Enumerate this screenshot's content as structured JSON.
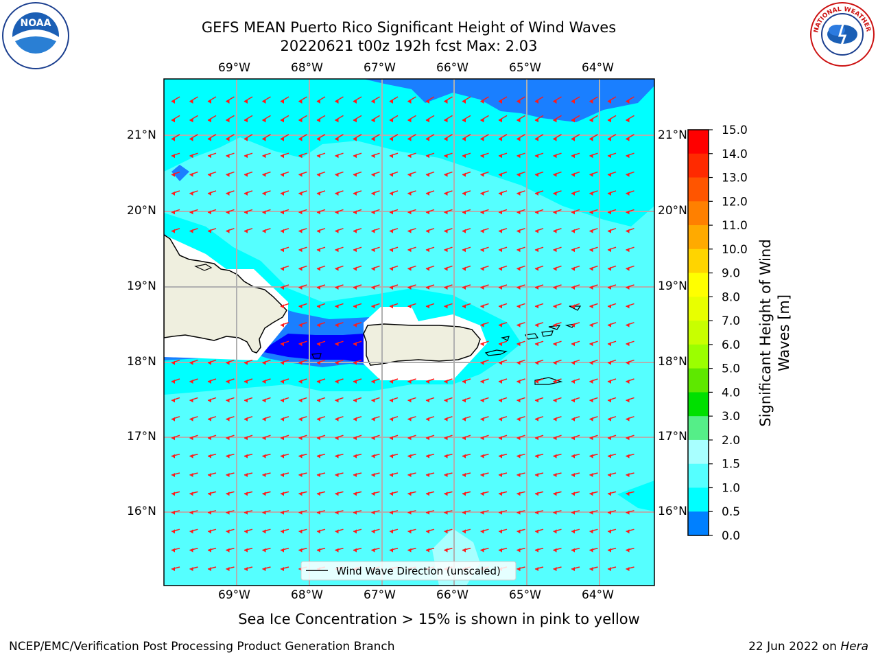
{
  "title": {
    "line1": "GEFS MEAN Puerto Rico Significant Height of Wind Waves",
    "line2": "20220621 t00z 192h fcst   Max: 2.03"
  },
  "map": {
    "lon_labels": [
      "69°W",
      "68°W",
      "67°W",
      "66°W",
      "65°W",
      "64°W"
    ],
    "lat_labels": [
      "21°N",
      "20°N",
      "19°N",
      "18°N",
      "17°N",
      "16°N"
    ],
    "lon_range": [
      -70.0,
      -63.25
    ],
    "lat_range": [
      15.0,
      21.75
    ],
    "wind_direction": "from east (arrows point west)"
  },
  "legend": {
    "label": "Wind Wave Direction (unscaled)"
  },
  "colorbar": {
    "label_line1": "Significant Height of Wind",
    "label_line2": "Waves [m]",
    "ticks": [
      "15.0",
      "14.0",
      "13.0",
      "12.0",
      "11.0",
      "10.0",
      "9.0",
      "8.0",
      "7.0",
      "6.0",
      "5.0",
      "4.0",
      "3.0",
      "2.0",
      "1.5",
      "1.0",
      "0.5",
      "0.0"
    ],
    "colors": [
      "#ff0000",
      "#ff2a00",
      "#ff5500",
      "#ff8000",
      "#ffaa00",
      "#ffd400",
      "#ffff00",
      "#e8ff00",
      "#c8ff00",
      "#9bff00",
      "#5ee800",
      "#00e000",
      "#55ee88",
      "#a8ffff",
      "#55ffff",
      "#00ffff",
      "#0080ff",
      "#0000ff"
    ]
  },
  "caption": "Sea Ice Concentration > 15% is shown in pink to yellow",
  "footer": {
    "left": "NCEP/EMC/Verification Post Processing Product Generation Branch",
    "right_prefix": "22 Jun 2022 on ",
    "right_host": "Hera"
  },
  "logos": {
    "noaa": "NOAA",
    "nws_text": "NATIONAL WEATHER SERVICE"
  }
}
